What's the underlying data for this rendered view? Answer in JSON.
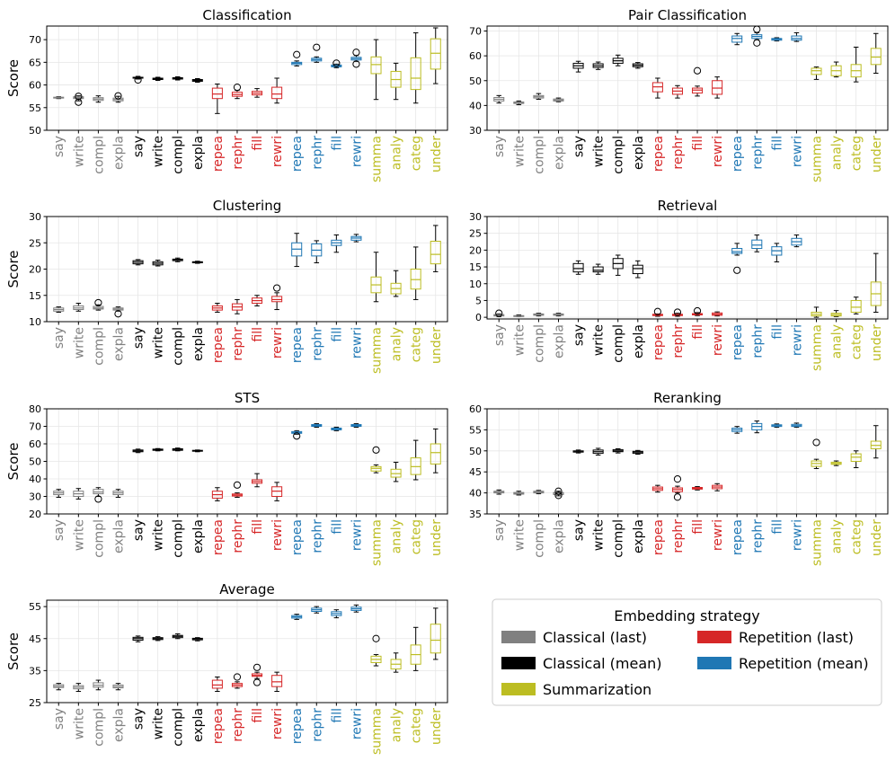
{
  "categories": [
    "say",
    "write",
    "compl",
    "expla",
    "say",
    "write",
    "compl",
    "expla",
    "repea",
    "rephr",
    "fill",
    "rewri",
    "repea",
    "rephr",
    "fill",
    "rewri",
    "summa",
    "analy",
    "categ",
    "under"
  ],
  "groups": [
    {
      "name": "Classical (last)",
      "color": "#808080",
      "count": 4
    },
    {
      "name": "Classical (mean)",
      "color": "#000000",
      "count": 4
    },
    {
      "name": "Repetition (last)",
      "color": "#d62728",
      "count": 4
    },
    {
      "name": "Repetition (mean)",
      "color": "#1f77b4",
      "count": 4
    },
    {
      "name": "Summarization",
      "color": "#bcbd22",
      "count": 4
    }
  ],
  "ylabel": "Score",
  "legend": {
    "title": "Embedding strategy",
    "items": [
      {
        "label": "Classical (last)",
        "color": "#808080"
      },
      {
        "label": "Repetition (last)",
        "color": "#d62728"
      },
      {
        "label": "Classical (mean)",
        "color": "#000000"
      },
      {
        "label": "Repetition (mean)",
        "color": "#1f77b4"
      },
      {
        "label": "Summarization",
        "color": "#bcbd22"
      }
    ]
  },
  "chart_data": [
    {
      "type": "box",
      "title": "Classification",
      "ylabel": "Score",
      "ylim": [
        50,
        73
      ],
      "yticks": [
        50,
        55,
        60,
        65,
        70
      ],
      "boxes": [
        [
          57,
          57.1,
          57.2,
          57.3,
          57.4,
          []
        ],
        [
          56.5,
          57,
          57.2,
          57.4,
          57.6,
          [
            56.2,
            57.5
          ]
        ],
        [
          56.2,
          56.6,
          56.9,
          57.2,
          57.6,
          []
        ],
        [
          56.2,
          56.5,
          56.8,
          57.1,
          57.5,
          [
            57.6
          ]
        ],
        [
          61.3,
          61.5,
          61.6,
          61.7,
          61.9,
          [
            61.1
          ]
        ],
        [
          61,
          61.2,
          61.4,
          61.5,
          61.7,
          []
        ],
        [
          61.1,
          61.3,
          61.5,
          61.6,
          61.8,
          []
        ],
        [
          60.6,
          60.8,
          61,
          61.2,
          61.4,
          []
        ],
        [
          53.7,
          57,
          58,
          59.3,
          60.2,
          []
        ],
        [
          57,
          57.5,
          57.9,
          58.4,
          58.8,
          [
            59.5
          ]
        ],
        [
          57.3,
          57.8,
          58.2,
          58.6,
          59.2,
          []
        ],
        [
          56,
          57,
          58,
          59.5,
          61.5,
          []
        ],
        [
          64.2,
          64.5,
          64.8,
          65,
          65.3,
          [
            66.7
          ]
        ],
        [
          65,
          65.3,
          65.6,
          65.9,
          66.2,
          [
            68.3
          ]
        ],
        [
          63.8,
          64,
          64.2,
          64.4,
          64.6,
          [
            64.8
          ]
        ],
        [
          65.2,
          65.5,
          65.8,
          66.1,
          66.5,
          [
            64.6,
            67.2
          ]
        ],
        [
          56.8,
          62.5,
          64.5,
          66.2,
          70
        ],
        [
          56.8,
          59.5,
          61.2,
          63,
          64.8
        ],
        [
          56,
          59,
          61.5,
          66,
          71.5
        ],
        [
          60.3,
          63.5,
          67,
          70.2,
          72.6
        ]
      ]
    },
    {
      "type": "box",
      "title": "Pair Classification",
      "ylabel": "",
      "ylim": [
        30,
        72
      ],
      "yticks": [
        30,
        40,
        50,
        60,
        70
      ],
      "boxes": [
        [
          41,
          41.8,
          42.5,
          43.2,
          44,
          []
        ],
        [
          40.3,
          40.8,
          41.1,
          41.4,
          41.8,
          []
        ],
        [
          42.5,
          43,
          43.5,
          44,
          44.8,
          []
        ],
        [
          41.5,
          41.8,
          42.2,
          42.6,
          43,
          []
        ],
        [
          53.5,
          55,
          56,
          57,
          57.8,
          []
        ],
        [
          54.5,
          55.3,
          56,
          56.8,
          57.5,
          []
        ],
        [
          56,
          57,
          58,
          59,
          60.3,
          []
        ],
        [
          55,
          55.6,
          56.2,
          56.8,
          57.3,
          []
        ],
        [
          43,
          45.5,
          47.5,
          49.2,
          51,
          []
        ],
        [
          43,
          44.5,
          45.8,
          47,
          48,
          []
        ],
        [
          43.8,
          45,
          46.2,
          47,
          47.8,
          [
            54
          ]
        ],
        [
          43,
          44.5,
          47,
          50,
          51.5,
          []
        ],
        [
          64.5,
          65.5,
          67,
          68,
          69,
          []
        ],
        [
          66.5,
          67,
          67.8,
          68.5,
          69.3,
          [
            65.2,
            70.7
          ]
        ],
        [
          66,
          66.3,
          66.7,
          67,
          67.3,
          []
        ],
        [
          65.8,
          66.3,
          67,
          68,
          69.3,
          []
        ],
        [
          50.5,
          52.5,
          54,
          55,
          55.5,
          []
        ],
        [
          51.5,
          52,
          54,
          56,
          57.5,
          []
        ],
        [
          49.5,
          51.5,
          54,
          56.5,
          63.5,
          []
        ],
        [
          53,
          56.5,
          59.5,
          63,
          69,
          []
        ]
      ]
    },
    {
      "type": "box",
      "title": "Clustering",
      "ylabel": "Score",
      "ylim": [
        10,
        30
      ],
      "yticks": [
        10,
        15,
        20,
        25,
        30
      ],
      "boxes": [
        [
          11.8,
          12,
          12.3,
          12.6,
          12.8,
          []
        ],
        [
          12,
          12.3,
          12.6,
          13,
          13.5,
          []
        ],
        [
          12.2,
          12.4,
          12.6,
          12.9,
          13.2,
          [
            13.6
          ]
        ],
        [
          12,
          12.2,
          12.4,
          12.6,
          12.8,
          [
            11.5
          ]
        ],
        [
          20.8,
          21,
          21.3,
          21.6,
          21.8,
          []
        ],
        [
          20.6,
          20.8,
          21.1,
          21.4,
          21.7,
          []
        ],
        [
          21.4,
          21.6,
          21.8,
          21.9,
          22.1,
          []
        ],
        [
          21.1,
          21.2,
          21.3,
          21.4,
          21.5,
          []
        ],
        [
          11.8,
          12.2,
          12.6,
          13,
          13.5,
          []
        ],
        [
          11.5,
          12.2,
          12.8,
          13.4,
          14.2,
          []
        ],
        [
          13,
          13.5,
          14,
          14.5,
          15,
          []
        ],
        [
          12.3,
          13.8,
          14.2,
          14.8,
          15.5,
          [
            16.4
          ]
        ],
        [
          20.5,
          22.5,
          23.8,
          25,
          26.8,
          []
        ],
        [
          21.2,
          22.5,
          23.6,
          24.8,
          25.4,
          []
        ],
        [
          23.2,
          24.5,
          25,
          25.5,
          26.5,
          []
        ],
        [
          25.2,
          25.5,
          25.9,
          26.2,
          26.6,
          []
        ],
        [
          13.8,
          15.5,
          17,
          18.5,
          23.2,
          []
        ],
        [
          14.8,
          15.3,
          16.3,
          17.3,
          19.7,
          []
        ],
        [
          14.2,
          16.2,
          18,
          20,
          24.2,
          []
        ],
        [
          19.5,
          21,
          22.8,
          25.3,
          28.3,
          []
        ]
      ]
    },
    {
      "type": "box",
      "title": "Retrieval",
      "ylabel": "",
      "ylim": [
        -0.5,
        30
      ],
      "yticks": [
        0,
        5,
        10,
        15,
        20,
        25,
        30
      ],
      "boxes": [
        [
          0.2,
          0.4,
          0.6,
          0.8,
          1,
          [
            1.2
          ]
        ],
        [
          0.2,
          0.3,
          0.4,
          0.5,
          0.7,
          []
        ],
        [
          0.4,
          0.6,
          0.8,
          1,
          1.2,
          []
        ],
        [
          0.4,
          0.6,
          0.8,
          1,
          1.2,
          []
        ],
        [
          12.8,
          13.5,
          14.5,
          16,
          16.8,
          []
        ],
        [
          12.8,
          13.5,
          14,
          15,
          15.8,
          []
        ],
        [
          12.5,
          14.5,
          16,
          17.5,
          18.5,
          []
        ],
        [
          11.8,
          13,
          14.5,
          15.5,
          16.8,
          []
        ],
        [
          0.3,
          0.5,
          0.7,
          0.9,
          1,
          [
            1.7
          ]
        ],
        [
          0.3,
          0.5,
          0.7,
          0.9,
          1.2,
          [
            1.5
          ]
        ],
        [
          0.5,
          0.7,
          0.9,
          1.1,
          1.4,
          [
            1.9
          ]
        ],
        [
          0.4,
          0.6,
          0.9,
          1.3,
          1.6,
          []
        ],
        [
          18.5,
          19,
          19.5,
          20.5,
          22,
          [
            14
          ]
        ],
        [
          19.5,
          20.5,
          21.5,
          23,
          24.5,
          []
        ],
        [
          16.5,
          18.5,
          19.8,
          21,
          22,
          []
        ],
        [
          21,
          21.5,
          22.5,
          23.5,
          24.5,
          []
        ],
        [
          0,
          0.4,
          0.9,
          1.5,
          3,
          []
        ],
        [
          0.2,
          0.4,
          0.8,
          1.2,
          2,
          []
        ],
        [
          1,
          1.5,
          3,
          5,
          6,
          []
        ],
        [
          1.5,
          3.5,
          7,
          10.5,
          19,
          []
        ]
      ]
    },
    {
      "type": "box",
      "title": "STS",
      "ylabel": "Score",
      "ylim": [
        20,
        80
      ],
      "yticks": [
        20,
        30,
        40,
        50,
        60,
        70,
        80
      ],
      "boxes": [
        [
          29.5,
          31,
          32,
          33,
          34,
          []
        ],
        [
          28.5,
          30,
          31.5,
          33,
          34.5,
          []
        ],
        [
          30,
          31.5,
          32.5,
          34,
          35,
          [
            28.5
          ]
        ],
        [
          29.5,
          31,
          32,
          33,
          34,
          []
        ],
        [
          55,
          55.5,
          56,
          56.5,
          57,
          []
        ],
        [
          56,
          56.3,
          56.7,
          57,
          57.3,
          []
        ],
        [
          56,
          56.3,
          56.8,
          57.2,
          57.6,
          []
        ],
        [
          55.5,
          55.8,
          56,
          56.3,
          56.5,
          []
        ],
        [
          27.5,
          29,
          31,
          33,
          35,
          []
        ],
        [
          29.5,
          30.2,
          30.8,
          31.4,
          32,
          [
            36.5
          ]
        ],
        [
          35.5,
          37.5,
          38.5,
          39.5,
          43,
          []
        ],
        [
          27.5,
          30,
          33,
          35.5,
          38,
          []
        ],
        [
          65.5,
          66,
          66.5,
          67,
          67.5,
          [
            64.5
          ]
        ],
        [
          69.5,
          70,
          70.5,
          71,
          71.5,
          []
        ],
        [
          67.5,
          68,
          68.5,
          69,
          69.5,
          []
        ],
        [
          69.5,
          70,
          70.5,
          71,
          71.5,
          []
        ],
        [
          43.5,
          44.5,
          46,
          47,
          48,
          [
            56.5
          ]
        ],
        [
          38.5,
          41,
          43,
          45.5,
          49.5,
          []
        ],
        [
          39.5,
          42.5,
          47,
          52,
          62,
          []
        ],
        [
          43.5,
          48.5,
          55,
          60,
          68.5,
          []
        ]
      ]
    },
    {
      "type": "box",
      "title": "Reranking",
      "ylabel": "",
      "ylim": [
        35,
        60
      ],
      "yticks": [
        35,
        40,
        45,
        50,
        55,
        60
      ],
      "boxes": [
        [
          39.7,
          40,
          40.2,
          40.4,
          40.7,
          []
        ],
        [
          39.5,
          39.7,
          39.9,
          40.1,
          40.4,
          []
        ],
        [
          39.8,
          40,
          40.2,
          40.4,
          40.6,
          []
        ],
        [
          39.3,
          39.6,
          39.9,
          40.1,
          40.4,
          [
            40.4,
            39.4
          ]
        ],
        [
          49.5,
          49.7,
          49.9,
          50,
          50.2,
          []
        ],
        [
          49,
          49.4,
          49.8,
          50.2,
          50.6,
          []
        ],
        [
          49.5,
          49.8,
          50,
          50.3,
          50.5,
          []
        ],
        [
          49.2,
          49.4,
          49.7,
          49.9,
          50.1,
          []
        ],
        [
          40.2,
          40.6,
          41,
          41.4,
          41.8,
          []
        ],
        [
          40,
          40.3,
          40.8,
          41.2,
          41.6,
          [
            39,
            43.3
          ]
        ],
        [
          40.7,
          40.9,
          41.1,
          41.3,
          41.5,
          []
        ],
        [
          40.5,
          41,
          41.4,
          41.8,
          42.2,
          []
        ],
        [
          54.2,
          54.6,
          55,
          55.4,
          55.8,
          []
        ],
        [
          54.3,
          55,
          55.8,
          56.5,
          57.1,
          []
        ],
        [
          55.6,
          55.8,
          56,
          56.2,
          56.4,
          []
        ],
        [
          55.6,
          55.8,
          56,
          56.3,
          56.6,
          []
        ],
        [
          45.8,
          46.3,
          47,
          47.6,
          48,
          [
            52
          ]
        ],
        [
          46.5,
          46.8,
          47,
          47.3,
          47.6,
          []
        ],
        [
          46,
          47.5,
          48.5,
          49.3,
          50,
          []
        ],
        [
          48.3,
          50.5,
          51.3,
          52.3,
          56,
          []
        ]
      ]
    },
    {
      "type": "box",
      "title": "Average",
      "ylabel": "Score",
      "ylim": [
        25,
        57
      ],
      "yticks": [
        25,
        35,
        45,
        55
      ],
      "boxes": [
        [
          29,
          29.7,
          30.1,
          30.6,
          31,
          []
        ],
        [
          28.5,
          29.3,
          29.8,
          30.3,
          31,
          []
        ],
        [
          29,
          29.8,
          30.4,
          31.2,
          32,
          []
        ],
        [
          29,
          29.6,
          30,
          30.5,
          31,
          []
        ],
        [
          44,
          44.5,
          45,
          45.4,
          45.8,
          []
        ],
        [
          44.4,
          44.7,
          45,
          45.3,
          45.6,
          []
        ],
        [
          45,
          45.3,
          45.7,
          46,
          46.5,
          []
        ],
        [
          44.3,
          44.6,
          44.9,
          45.1,
          45.3,
          []
        ],
        [
          28.5,
          29.5,
          30.5,
          32,
          33,
          []
        ],
        [
          29.5,
          30,
          30.5,
          31,
          31.5,
          [
            33
          ]
        ],
        [
          32.5,
          33.2,
          33.5,
          34,
          34.5,
          [
            31.3,
            36
          ]
        ],
        [
          28.5,
          30,
          31.5,
          33.5,
          34.5,
          []
        ],
        [
          51,
          51.4,
          51.8,
          52.2,
          52.6,
          []
        ],
        [
          53,
          53.5,
          54,
          54.5,
          55,
          []
        ],
        [
          51.5,
          52.2,
          52.8,
          53.4,
          54,
          []
        ],
        [
          53.3,
          53.8,
          54.3,
          54.8,
          55.5,
          []
        ],
        [
          36.5,
          37.5,
          38.5,
          39.5,
          40,
          [
            45
          ]
        ],
        [
          34.5,
          35.5,
          37,
          38.5,
          40.5,
          []
        ],
        [
          35,
          37,
          40,
          43,
          48.5,
          []
        ],
        [
          38.5,
          40.5,
          44.5,
          49.5,
          54.5,
          []
        ]
      ]
    }
  ]
}
